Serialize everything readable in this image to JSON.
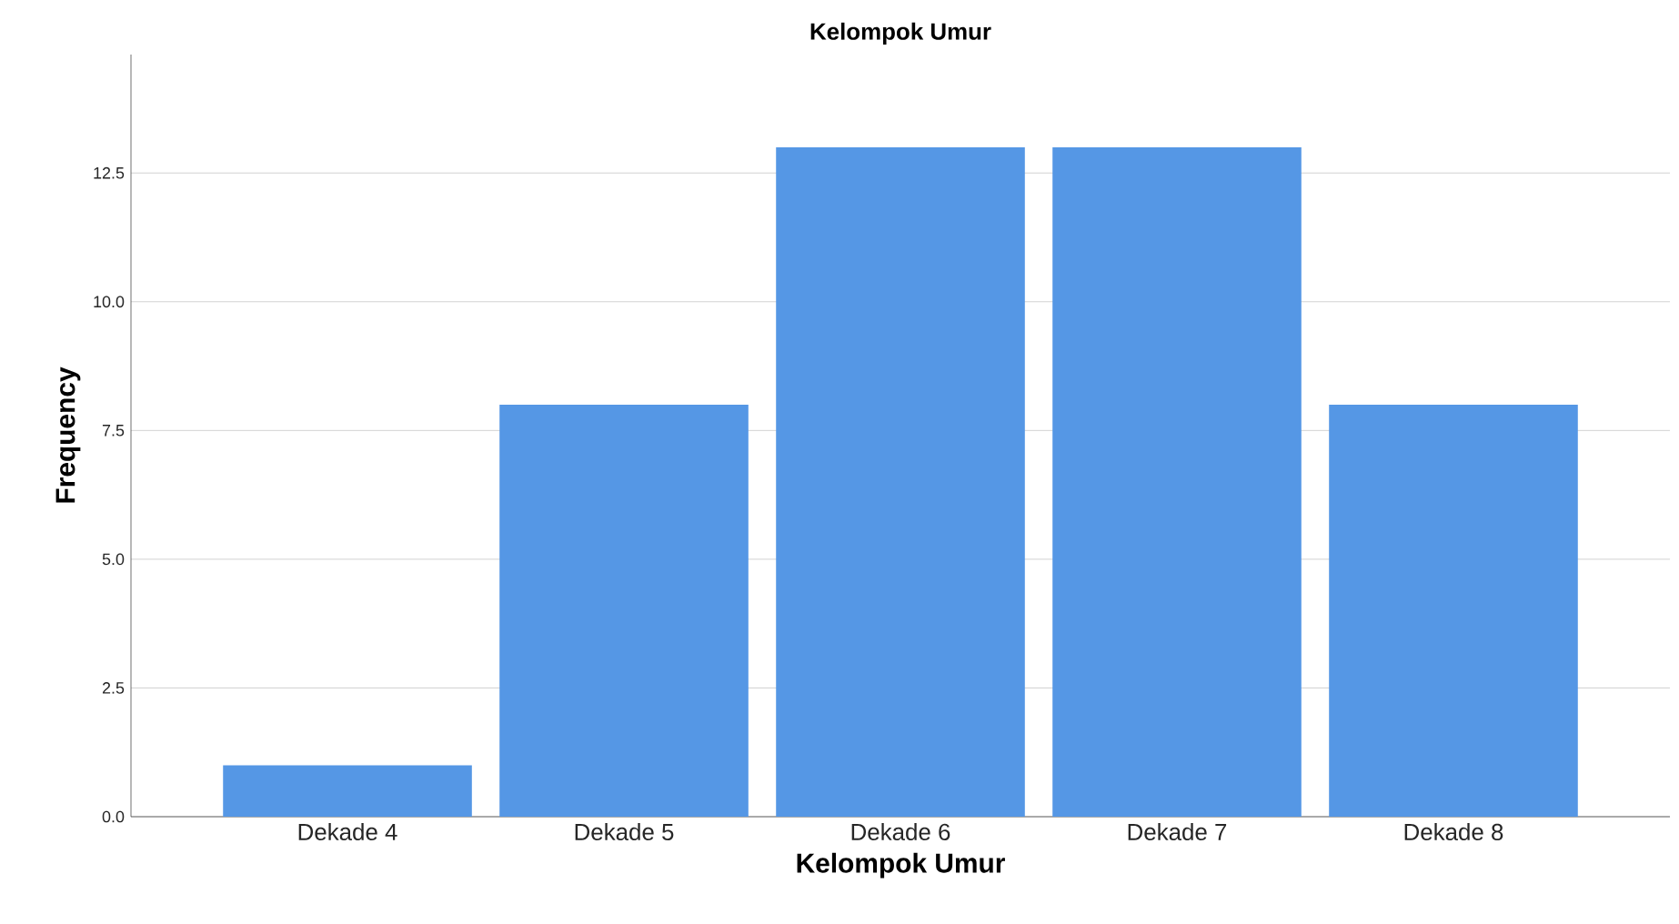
{
  "chart_data": {
    "type": "bar",
    "title": "Kelompok Umur",
    "xlabel": "Kelompok Umur",
    "ylabel": "Frequency",
    "categories": [
      "Dekade 4",
      "Dekade 5",
      "Dekade 6",
      "Dekade 7",
      "Dekade 8"
    ],
    "values": [
      1,
      8,
      13,
      13,
      8
    ],
    "color": "#5597e5",
    "ylim": [
      0,
      14.8
    ],
    "yticks": [
      {
        "value": 0,
        "label": "0.0"
      },
      {
        "value": 2.5,
        "label": "2.5"
      },
      {
        "value": 5,
        "label": "5.0"
      },
      {
        "value": 7.5,
        "label": "7.5"
      },
      {
        "value": 10,
        "label": "10.0"
      },
      {
        "value": 12.5,
        "label": "12.5"
      }
    ],
    "grid": "y"
  }
}
